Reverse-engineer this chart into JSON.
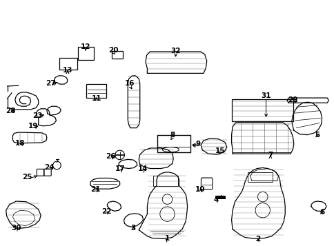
{
  "background": "#ffffff",
  "fig_width": 4.85,
  "fig_height": 3.57,
  "dpi": 100,
  "image_b64": ""
}
